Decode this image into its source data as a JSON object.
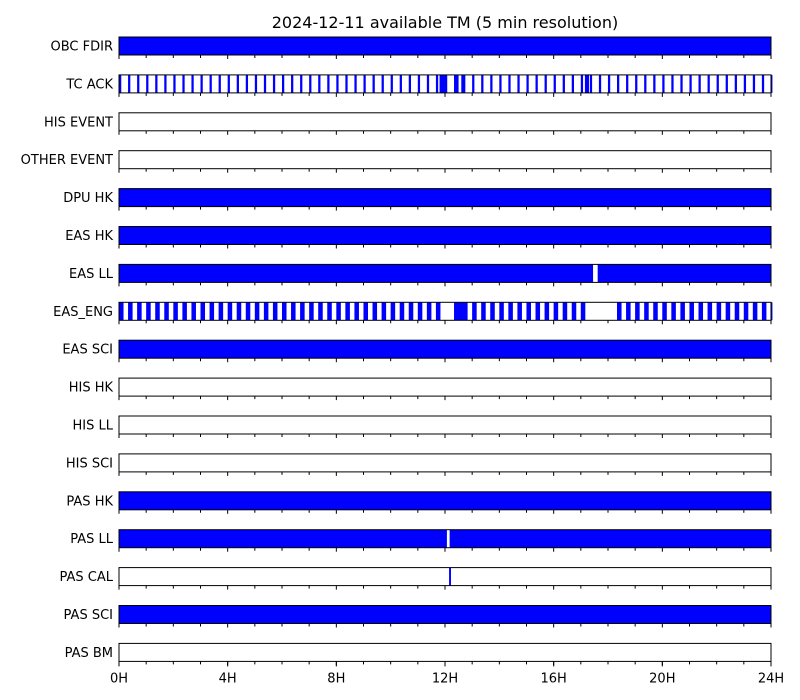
{
  "chart_data": {
    "type": "timeline",
    "title": "2024-12-11 available TM (5 min resolution)",
    "x_unit": "hours",
    "xlim": [
      0,
      24
    ],
    "xticks": [
      {
        "value": 0,
        "label": "0H"
      },
      {
        "value": 4,
        "label": "4H"
      },
      {
        "value": 8,
        "label": "8H"
      },
      {
        "value": 12,
        "label": "12H"
      },
      {
        "value": 16,
        "label": "16H"
      },
      {
        "value": 20,
        "label": "20H"
      },
      {
        "value": 24,
        "label": "24H"
      }
    ],
    "fill_color": "#0000ff",
    "rows": [
      {
        "name": "OBC FDIR",
        "pattern": "full"
      },
      {
        "name": "TC ACK",
        "pattern": "periodic",
        "period_h": 0.3333,
        "width_h": 0.0833,
        "extra_intervals": [
          [
            11.8,
            12.05
          ],
          [
            12.4,
            12.5
          ],
          [
            12.6,
            12.7
          ],
          [
            17.15,
            17.3
          ]
        ]
      },
      {
        "name": "HIS EVENT",
        "pattern": "empty"
      },
      {
        "name": "OTHER EVENT",
        "pattern": "empty"
      },
      {
        "name": "DPU HK",
        "pattern": "full"
      },
      {
        "name": "EAS HK",
        "pattern": "full"
      },
      {
        "name": "EAS LL",
        "pattern": "intervals",
        "intervals": [
          [
            0,
            17.45
          ],
          [
            17.62,
            24
          ]
        ]
      },
      {
        "name": "EAS_ENG",
        "pattern": "periodic",
        "period_h": 0.3333,
        "width_h": 0.1667,
        "gaps": [
          [
            11.85,
            12.3
          ],
          [
            17.2,
            18.0
          ]
        ],
        "extra_intervals": [
          [
            12.35,
            12.8
          ]
        ]
      },
      {
        "name": "EAS SCI",
        "pattern": "full"
      },
      {
        "name": "HIS HK",
        "pattern": "empty"
      },
      {
        "name": "HIS LL",
        "pattern": "empty"
      },
      {
        "name": "HIS SCI",
        "pattern": "empty"
      },
      {
        "name": "PAS HK",
        "pattern": "full"
      },
      {
        "name": "PAS LL",
        "pattern": "intervals",
        "intervals": [
          [
            0,
            12.07
          ],
          [
            12.17,
            24
          ]
        ]
      },
      {
        "name": "PAS CAL",
        "pattern": "intervals",
        "intervals": [
          [
            12.15,
            12.22
          ]
        ]
      },
      {
        "name": "PAS SCI",
        "pattern": "full"
      },
      {
        "name": "PAS BM",
        "pattern": "empty"
      }
    ]
  }
}
